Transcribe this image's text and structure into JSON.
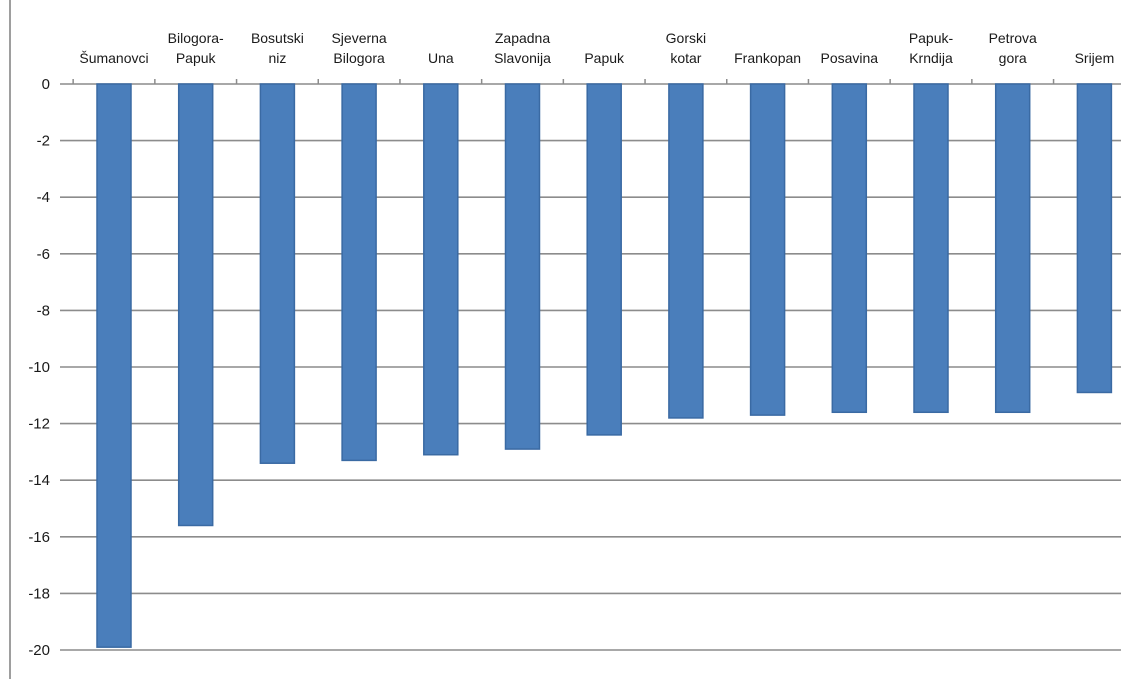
{
  "chart_data": {
    "type": "bar",
    "categories": [
      [
        "Šumanovci"
      ],
      [
        "Bilogora-",
        "Papuk"
      ],
      [
        "Bosutski",
        "niz"
      ],
      [
        "Sjeverna",
        "Bilogora"
      ],
      [
        "Una"
      ],
      [
        "Zapadna",
        "Slavonija"
      ],
      [
        "Papuk"
      ],
      [
        "Gorski",
        "kotar"
      ],
      [
        "Frankopan"
      ],
      [
        "Posavina"
      ],
      [
        "Papuk-",
        "Krndija"
      ],
      [
        "Petrova",
        "gora"
      ],
      [
        "Srijem"
      ]
    ],
    "values": [
      -19.9,
      -15.6,
      -13.4,
      -13.3,
      -13.1,
      -12.9,
      -12.4,
      -11.8,
      -11.7,
      -11.6,
      -11.6,
      -11.6,
      -10.9
    ],
    "ylim": [
      -20,
      0
    ],
    "yticks": [
      0,
      -2,
      -4,
      -6,
      -8,
      -10,
      -12,
      -14,
      -16,
      -18,
      -20
    ],
    "grid": true,
    "legend": "none",
    "title": "",
    "xlabel": "",
    "ylabel": "",
    "colors": {
      "bar": "#4a7ebb",
      "bar_edge": "#3a6aa3",
      "grid": "#8c8c8c",
      "axis": "#7f7f7f"
    }
  }
}
